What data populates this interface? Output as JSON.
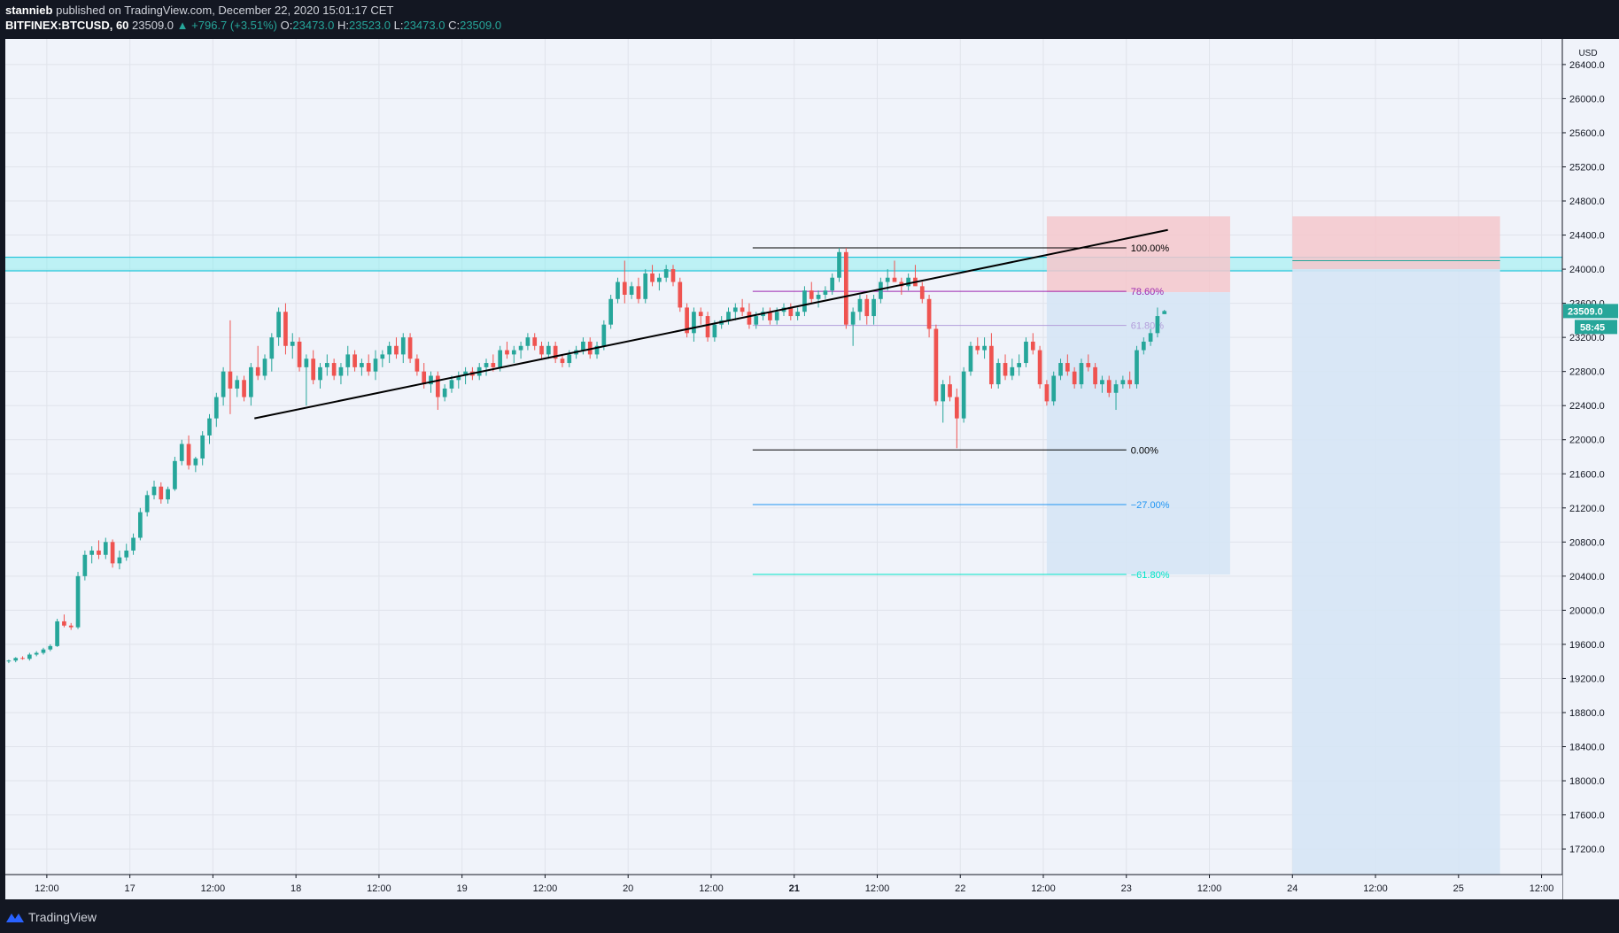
{
  "header": {
    "author": "stannieb",
    "published_text": "published on TradingView.com, December 22, 2020 15:01:17 CET",
    "symbol": "BITFINEX:BTCUSD, 60",
    "last_price": "23509.0",
    "change": "+796.7 (+3.51%)",
    "o_label": "O:",
    "o_value": "23473.0",
    "h_label": "H:",
    "h_value": "23523.0",
    "l_label": "L:",
    "l_value": "23473.0",
    "c_label": "C:",
    "c_value": "23509.0"
  },
  "footer": {
    "brand": "TradingView"
  },
  "colors": {
    "up": "#26a69a",
    "down": "#ef5350",
    "bg": "#f0f3fa",
    "frame": "#131722",
    "resistance_zone": "#7ef0f0",
    "stop_zone": "#f4c7cb",
    "target_zone": "#d6e6f5",
    "fib_100": "#000000",
    "fib_786": "#9c27b0",
    "fib_618": "#b39ddb",
    "fib_0": "#000000",
    "fib_m27": "#2196f3",
    "fib_m618": "#00e5c8"
  },
  "chart_data": {
    "type": "candlestick",
    "currency_label": "USD",
    "ylim": [
      16900,
      26700
    ],
    "price_ticks": [
      "26400.0",
      "26000.0",
      "25600.0",
      "25200.0",
      "24800.0",
      "24400.0",
      "24000.0",
      "23600.0",
      "23200.0",
      "22800.0",
      "22400.0",
      "22000.0",
      "21600.0",
      "21200.0",
      "20800.0",
      "20400.0",
      "20000.0",
      "19600.0",
      "19200.0",
      "18800.0",
      "18400.0",
      "18000.0",
      "17600.0",
      "17200.0"
    ],
    "time_axis": {
      "x_start": "2020-12-16T06:00",
      "x_end": "2020-12-25T15:00",
      "labels": [
        {
          "t": "2020-12-16T12:00",
          "label": "12:00"
        },
        {
          "t": "2020-12-17T00:00",
          "label": "17"
        },
        {
          "t": "2020-12-17T12:00",
          "label": "12:00"
        },
        {
          "t": "2020-12-18T00:00",
          "label": "18"
        },
        {
          "t": "2020-12-18T12:00",
          "label": "12:00"
        },
        {
          "t": "2020-12-19T00:00",
          "label": "19"
        },
        {
          "t": "2020-12-19T12:00",
          "label": "12:00"
        },
        {
          "t": "2020-12-20T00:00",
          "label": "20"
        },
        {
          "t": "2020-12-20T12:00",
          "label": "12:00"
        },
        {
          "t": "2020-12-21T00:00",
          "label": "21"
        },
        {
          "t": "2020-12-21T12:00",
          "label": "12:00"
        },
        {
          "t": "2020-12-22T00:00",
          "label": "22"
        },
        {
          "t": "2020-12-22T12:00",
          "label": "12:00"
        },
        {
          "t": "2020-12-23T00:00",
          "label": "23"
        },
        {
          "t": "2020-12-23T12:00",
          "label": "12:00"
        },
        {
          "t": "2020-12-24T00:00",
          "label": "24"
        },
        {
          "t": "2020-12-24T12:00",
          "label": "12:00"
        },
        {
          "t": "2020-12-25T00:00",
          "label": "25"
        },
        {
          "t": "2020-12-25T12:00",
          "label": "12:00"
        }
      ]
    },
    "candles_start": "2020-12-16T06:00",
    "candle_interval_hours": 1,
    "candles": [
      [
        19400,
        19420,
        19380,
        19410
      ],
      [
        19410,
        19450,
        19390,
        19440
      ],
      [
        19440,
        19460,
        19420,
        19430
      ],
      [
        19430,
        19500,
        19410,
        19480
      ],
      [
        19480,
        19520,
        19460,
        19500
      ],
      [
        19500,
        19560,
        19480,
        19540
      ],
      [
        19540,
        19600,
        19520,
        19580
      ],
      [
        19580,
        19900,
        19570,
        19870
      ],
      [
        19870,
        19950,
        19800,
        19820
      ],
      [
        19820,
        19850,
        19770,
        19800
      ],
      [
        19800,
        20450,
        19780,
        20400
      ],
      [
        20400,
        20700,
        20350,
        20650
      ],
      [
        20650,
        20750,
        20550,
        20700
      ],
      [
        20700,
        20820,
        20600,
        20650
      ],
      [
        20650,
        20850,
        20600,
        20800
      ],
      [
        20800,
        20830,
        20500,
        20550
      ],
      [
        20550,
        20700,
        20480,
        20620
      ],
      [
        20620,
        20780,
        20580,
        20700
      ],
      [
        20700,
        20900,
        20650,
        20850
      ],
      [
        20850,
        21200,
        20820,
        21150
      ],
      [
        21150,
        21400,
        21100,
        21350
      ],
      [
        21350,
        21520,
        21300,
        21450
      ],
      [
        21450,
        21500,
        21250,
        21300
      ],
      [
        21300,
        21450,
        21250,
        21420
      ],
      [
        21420,
        21800,
        21400,
        21750
      ],
      [
        21750,
        22000,
        21700,
        21950
      ],
      [
        21950,
        22050,
        21650,
        21700
      ],
      [
        21700,
        21800,
        21620,
        21780
      ],
      [
        21780,
        22100,
        21700,
        22050
      ],
      [
        22050,
        22300,
        21950,
        22250
      ],
      [
        22250,
        22550,
        22150,
        22500
      ],
      [
        22500,
        22850,
        22400,
        22800
      ],
      [
        22800,
        23400,
        22300,
        22600
      ],
      [
        22600,
        22750,
        22500,
        22700
      ],
      [
        22700,
        22750,
        22450,
        22500
      ],
      [
        22500,
        22900,
        22400,
        22850
      ],
      [
        22850,
        23100,
        22700,
        22750
      ],
      [
        22750,
        23000,
        22700,
        22950
      ],
      [
        22950,
        23250,
        22800,
        23200
      ],
      [
        23200,
        23550,
        23100,
        23500
      ],
      [
        23500,
        23600,
        23000,
        23100
      ],
      [
        23100,
        23250,
        22950,
        23150
      ],
      [
        23150,
        23200,
        22800,
        22850
      ],
      [
        22850,
        23000,
        22400,
        22950
      ],
      [
        22950,
        23050,
        22650,
        22700
      ],
      [
        22700,
        22900,
        22600,
        22850
      ],
      [
        22850,
        23000,
        22750,
        22900
      ],
      [
        22900,
        22950,
        22700,
        22750
      ],
      [
        22750,
        22900,
        22650,
        22850
      ],
      [
        22850,
        23100,
        22750,
        23000
      ],
      [
        23000,
        23050,
        22800,
        22850
      ],
      [
        22850,
        22950,
        22750,
        22900
      ],
      [
        22900,
        23000,
        22750,
        22800
      ],
      [
        22800,
        23050,
        22700,
        22950
      ],
      [
        22950,
        23050,
        22850,
        23000
      ],
      [
        23000,
        23150,
        22900,
        23100
      ],
      [
        23100,
        23200,
        22950,
        23000
      ],
      [
        23000,
        23250,
        22900,
        23200
      ],
      [
        23200,
        23250,
        22900,
        22950
      ],
      [
        22950,
        23000,
        22750,
        22800
      ],
      [
        22800,
        22900,
        22600,
        22650
      ],
      [
        22650,
        22800,
        22550,
        22750
      ],
      [
        22750,
        22800,
        22350,
        22500
      ],
      [
        22500,
        22650,
        22450,
        22600
      ],
      [
        22600,
        22750,
        22550,
        22700
      ],
      [
        22700,
        22800,
        22600,
        22750
      ],
      [
        22750,
        22850,
        22650,
        22800
      ],
      [
        22800,
        22850,
        22700,
        22750
      ],
      [
        22750,
        22900,
        22700,
        22850
      ],
      [
        22850,
        22950,
        22750,
        22900
      ],
      [
        22900,
        23000,
        22800,
        22850
      ],
      [
        22850,
        23100,
        22800,
        23050
      ],
      [
        23050,
        23150,
        22950,
        23000
      ],
      [
        23000,
        23100,
        22900,
        23050
      ],
      [
        23050,
        23150,
        22950,
        23100
      ],
      [
        23100,
        23250,
        23050,
        23200
      ],
      [
        23200,
        23250,
        23050,
        23100
      ],
      [
        23100,
        23150,
        22950,
        23000
      ],
      [
        23000,
        23150,
        22950,
        23100
      ],
      [
        23100,
        23150,
        22900,
        22950
      ],
      [
        22950,
        23000,
        22850,
        22900
      ],
      [
        22900,
        23050,
        22850,
        23000
      ],
      [
        23000,
        23100,
        22950,
        23050
      ],
      [
        23050,
        23200,
        23000,
        23150
      ],
      [
        23150,
        23200,
        22950,
        23000
      ],
      [
        23000,
        23150,
        22950,
        23100
      ],
      [
        23100,
        23400,
        23050,
        23350
      ],
      [
        23350,
        23700,
        23300,
        23650
      ],
      [
        23650,
        23900,
        23600,
        23850
      ],
      [
        23850,
        24100,
        23600,
        23700
      ],
      [
        23700,
        23850,
        23650,
        23800
      ],
      [
        23800,
        23900,
        23600,
        23650
      ],
      [
        23650,
        24000,
        23600,
        23950
      ],
      [
        23950,
        24050,
        23800,
        23850
      ],
      [
        23850,
        23950,
        23750,
        23900
      ],
      [
        23900,
        24050,
        23850,
        24000
      ],
      [
        24000,
        24050,
        23800,
        23850
      ],
      [
        23850,
        23900,
        23500,
        23550
      ],
      [
        23550,
        23600,
        23200,
        23250
      ],
      [
        23250,
        23550,
        23150,
        23500
      ],
      [
        23500,
        23550,
        23350,
        23450
      ],
      [
        23450,
        23500,
        23150,
        23200
      ],
      [
        23200,
        23400,
        23150,
        23350
      ],
      [
        23350,
        23450,
        23300,
        23400
      ],
      [
        23400,
        23550,
        23350,
        23500
      ],
      [
        23500,
        23600,
        23400,
        23550
      ],
      [
        23550,
        23650,
        23450,
        23500
      ],
      [
        23500,
        23600,
        23300,
        23350
      ],
      [
        23350,
        23500,
        23300,
        23450
      ],
      [
        23450,
        23550,
        23400,
        23500
      ],
      [
        23500,
        23550,
        23350,
        23400
      ],
      [
        23400,
        23550,
        23350,
        23500
      ],
      [
        23500,
        23600,
        23450,
        23550
      ],
      [
        23550,
        23600,
        23400,
        23450
      ],
      [
        23450,
        23550,
        23400,
        23500
      ],
      [
        23500,
        23800,
        23450,
        23750
      ],
      [
        23750,
        23850,
        23600,
        23650
      ],
      [
        23650,
        23750,
        23550,
        23700
      ],
      [
        23700,
        23800,
        23650,
        23750
      ],
      [
        23750,
        23950,
        23700,
        23900
      ],
      [
        23900,
        24250,
        23850,
        24200
      ],
      [
        24200,
        24250,
        23300,
        23350
      ],
      [
        23350,
        23550,
        23100,
        23500
      ],
      [
        23500,
        23700,
        23400,
        23650
      ],
      [
        23650,
        23700,
        23350,
        23450
      ],
      [
        23450,
        23700,
        23350,
        23650
      ],
      [
        23650,
        23900,
        23600,
        23850
      ],
      [
        23850,
        24000,
        23750,
        23900
      ],
      [
        23900,
        24100,
        23850,
        23850
      ],
      [
        23850,
        23900,
        23700,
        23800
      ],
      [
        23800,
        23950,
        23750,
        23900
      ],
      [
        23900,
        24050,
        23850,
        23800
      ],
      [
        23800,
        23850,
        23600,
        23650
      ],
      [
        23650,
        23700,
        23200,
        23300
      ],
      [
        23300,
        23350,
        22400,
        22450
      ],
      [
        22450,
        22700,
        22200,
        22650
      ],
      [
        22650,
        22750,
        22450,
        22500
      ],
      [
        22500,
        22600,
        21900,
        22250
      ],
      [
        22250,
        22850,
        22200,
        22800
      ],
      [
        22800,
        23150,
        22750,
        23100
      ],
      [
        23100,
        23200,
        23000,
        23050
      ],
      [
        23050,
        23200,
        22950,
        23100
      ],
      [
        23100,
        23250,
        22600,
        22650
      ],
      [
        22650,
        22950,
        22600,
        22900
      ],
      [
        22900,
        23000,
        22700,
        22750
      ],
      [
        22750,
        22950,
        22700,
        22850
      ],
      [
        22850,
        23000,
        22750,
        22900
      ],
      [
        22900,
        23200,
        22850,
        23150
      ],
      [
        23150,
        23250,
        23000,
        23050
      ],
      [
        23050,
        23100,
        22600,
        22650
      ],
      [
        22650,
        22700,
        22400,
        22450
      ],
      [
        22450,
        22800,
        22400,
        22750
      ],
      [
        22750,
        22950,
        22700,
        22900
      ],
      [
        22900,
        23000,
        22750,
        22800
      ],
      [
        22800,
        22850,
        22600,
        22650
      ],
      [
        22650,
        22950,
        22600,
        22900
      ],
      [
        22900,
        23000,
        22800,
        22850
      ],
      [
        22850,
        22900,
        22600,
        22650
      ],
      [
        22650,
        22750,
        22550,
        22700
      ],
      [
        22700,
        22750,
        22500,
        22550
      ],
      [
        22550,
        22700,
        22350,
        22650
      ],
      [
        22650,
        22750,
        22600,
        22700
      ],
      [
        22700,
        22800,
        22600,
        22650
      ],
      [
        22650,
        23100,
        22600,
        23050
      ],
      [
        23050,
        23200,
        23000,
        23150
      ],
      [
        23150,
        23300,
        23100,
        23250
      ],
      [
        23250,
        23550,
        23200,
        23450
      ],
      [
        23473,
        23523,
        23473,
        23509
      ]
    ],
    "trendlines": [
      {
        "name": "rising-support",
        "from": {
          "t": "2020-12-17T18:00",
          "p": 22250
        },
        "to": {
          "t": "2020-12-23T06:00",
          "p": 24460
        }
      },
      {
        "name": "target-stub",
        "from": {
          "t": "2020-12-24T00:00",
          "p": 24100
        },
        "to": {
          "t": "2020-12-25T06:00",
          "p": 24100
        }
      }
    ],
    "zones": [
      {
        "name": "resistance-zone",
        "t_start": "2020-12-16T06:00",
        "t_end": "2020-12-25T15:00",
        "p_low": 23980,
        "p_high": 24140
      },
      {
        "name": "stop-zone-1",
        "t_start": "2020-12-22T12:30",
        "t_end": "2020-12-23T15:00",
        "p_low": 23730,
        "p_high": 24620
      },
      {
        "name": "target-zone-1",
        "t_start": "2020-12-22T12:30",
        "t_end": "2020-12-23T15:00",
        "p_low": 20420,
        "p_high": 23730
      },
      {
        "name": "stop-zone-2",
        "t_start": "2020-12-24T00:00",
        "t_end": "2020-12-25T06:00",
        "p_low": 24000,
        "p_high": 24620
      },
      {
        "name": "target-zone-2",
        "t_start": "2020-12-24T00:00",
        "t_end": "2020-12-25T06:00",
        "p_low": 16900,
        "p_high": 24000
      }
    ],
    "fib_levels": [
      {
        "label": "100.00%",
        "price": 24250,
        "color": "#000000"
      },
      {
        "label": "78.60%",
        "price": 23740,
        "color": "#9c27b0"
      },
      {
        "label": "61.80%",
        "price": 23340,
        "color": "#b39ddb"
      },
      {
        "label": "0.00%",
        "price": 21880,
        "color": "#000000"
      },
      {
        "label": "−27.00%",
        "price": 21240,
        "color": "#2196f3"
      },
      {
        "label": "−61.80%",
        "price": 20420,
        "color": "#00e5c8"
      }
    ],
    "fib_range": {
      "t_start": "2020-12-20T18:00",
      "t_end": "2020-12-23T00:00"
    },
    "last_price_label": "23509.0",
    "countdown_label": "58:45"
  }
}
